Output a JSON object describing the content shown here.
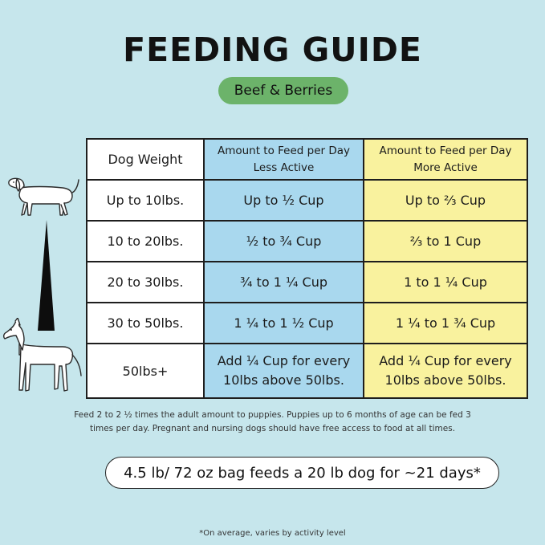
{
  "title": "FEEDING GUIDE",
  "flavor": "Beef & Berries",
  "colors": {
    "background": "#c6e6ec",
    "pill_green": "#6cb36a",
    "less_active": "#a9d8ee",
    "more_active": "#f9f29e"
  },
  "table": {
    "headers": {
      "weight": "Dog Weight",
      "less_line1": "Amount to Feed per Day",
      "less_line2": "Less Active",
      "more_line1": "Amount to Feed per Day",
      "more_line2": "More Active"
    },
    "rows": [
      {
        "weight": "Up to 10lbs.",
        "less": "Up to ½ Cup",
        "more": "Up to ⅔ Cup"
      },
      {
        "weight": "10 to 20lbs.",
        "less": "½ to ¾ Cup",
        "more": "⅔ to 1 Cup"
      },
      {
        "weight": "20 to 30lbs.",
        "less": "¾ to 1 ¼ Cup",
        "more": "1 to 1 ¼ Cup"
      },
      {
        "weight": "30 to 50lbs.",
        "less": "1 ¼ to 1 ½ Cup",
        "more": "1 ¼ to 1 ¾ Cup"
      },
      {
        "weight": "50lbs+",
        "less_line1": "Add ¼ Cup for every",
        "less_line2": "10lbs above 50lbs.",
        "more_line1": "Add ¼ Cup for every",
        "more_line2": "10lbs above 50lbs."
      }
    ]
  },
  "note_line1": "Feed 2 to 2 ½ times the adult amount to puppies. Puppies up to 6 months of age can be fed 3",
  "note_line2": "times per day. Pregnant and nursing dogs should have free access to food at all times.",
  "bag_info": "4.5 lb/ 72 oz bag feeds a 20 lb dog for ~21 days*",
  "footnote": "*On average, varies by activity level",
  "icons": [
    "small-dog-icon",
    "size-wedge-icon",
    "large-dog-icon"
  ]
}
